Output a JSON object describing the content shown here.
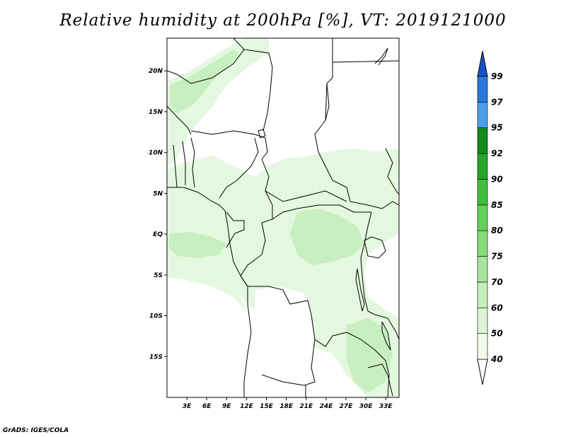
{
  "title": "Relative humidity at 200hPa [%], VT: 2019121000",
  "credit": "GrADS: IGES/COLA",
  "map": {
    "lon_range": [
      0,
      35
    ],
    "lat_range": [
      -20,
      24
    ],
    "lat_ticks": [
      {
        "value": 20,
        "label": "20N"
      },
      {
        "value": 15,
        "label": "15N"
      },
      {
        "value": 10,
        "label": "10N"
      },
      {
        "value": 5,
        "label": "5N"
      },
      {
        "value": 0,
        "label": "EQ"
      },
      {
        "value": -5,
        "label": "5S"
      },
      {
        "value": -10,
        "label": "10S"
      },
      {
        "value": -15,
        "label": "15S"
      }
    ],
    "lon_ticks": [
      {
        "value": 3,
        "label": "3E"
      },
      {
        "value": 6,
        "label": "6E"
      },
      {
        "value": 9,
        "label": "9E"
      },
      {
        "value": 12,
        "label": "12E"
      },
      {
        "value": 15,
        "label": "15E"
      },
      {
        "value": 18,
        "label": "18E"
      },
      {
        "value": 21,
        "label": "21E"
      },
      {
        "value": 24,
        "label": "24E"
      },
      {
        "value": 27,
        "label": "27E"
      },
      {
        "value": 30,
        "label": "30E"
      },
      {
        "value": 33,
        "label": "33E"
      }
    ]
  },
  "colorbar": {
    "levels": [
      "40",
      "50",
      "60",
      "70",
      "75",
      "80",
      "85",
      "90",
      "92",
      "95",
      "97",
      "99"
    ],
    "colors": [
      "#f0fbee",
      "#dcf5d6",
      "#c4efbb",
      "#a6e69a",
      "#86dc7a",
      "#62d05a",
      "#3fbf3b",
      "#24a52a",
      "#128b1b",
      "#4a9eea",
      "#2a77dc",
      "#1654c4"
    ],
    "under_color": "#ffffff",
    "over_color": "#1654c4"
  },
  "colors": {
    "humidity_light": "#e4f7df",
    "humidity_mid": "#c8efbf",
    "border": "#000000"
  }
}
